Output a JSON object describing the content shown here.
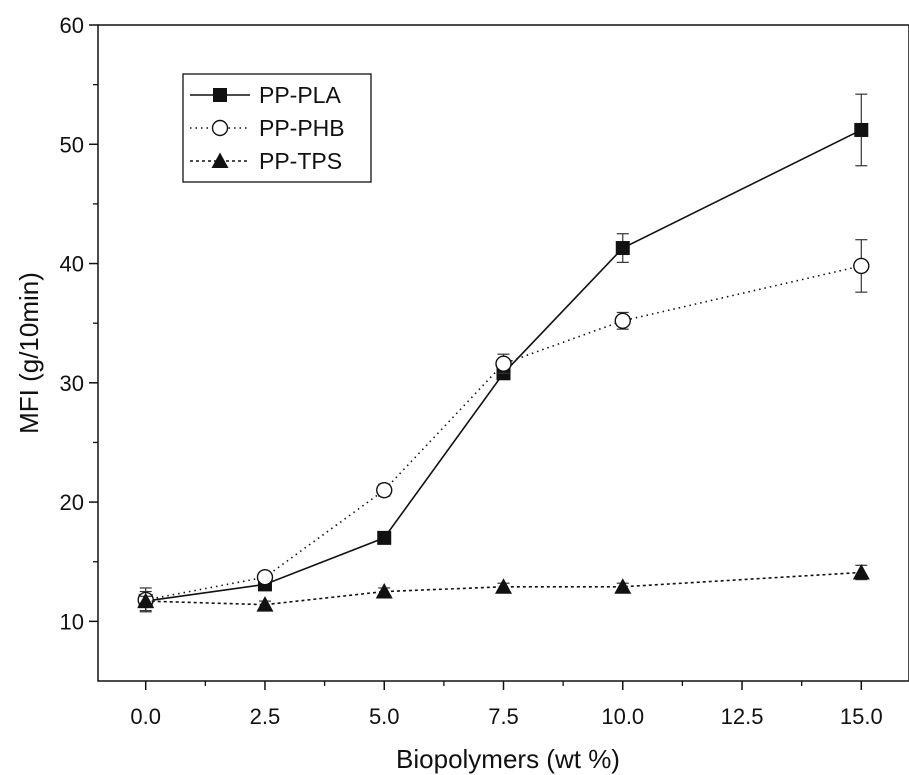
{
  "chart_data": {
    "type": "line",
    "xlabel": "Biopolymers (wt %)",
    "ylabel": "MFI (g/10min)",
    "xlim": [
      -1,
      16
    ],
    "ylim": [
      5,
      60
    ],
    "x_ticks": [
      "0.0",
      "2.5",
      "5.0",
      "7.5",
      "10.0",
      "12.5",
      "15.0"
    ],
    "y_ticks": [
      "10",
      "20",
      "30",
      "40",
      "50",
      "60"
    ],
    "legend_position": "top-left",
    "series": [
      {
        "name": "PP-PLA",
        "marker": "filled-square",
        "line_style": "solid",
        "x": [
          0.0,
          2.5,
          5.0,
          7.5,
          10.0,
          15.0
        ],
        "values": [
          11.7,
          13.1,
          17.0,
          30.8,
          41.3,
          51.2
        ],
        "errors": [
          0.8,
          0.3,
          0.3,
          0.5,
          1.2,
          3.0
        ]
      },
      {
        "name": "PP-PHB",
        "marker": "open-circle",
        "line_style": "dotted",
        "x": [
          0.0,
          2.5,
          5.0,
          7.5,
          10.0,
          15.0
        ],
        "values": [
          11.8,
          13.7,
          21.0,
          31.6,
          35.2,
          39.8
        ],
        "errors": [
          1.0,
          0.4,
          0.5,
          0.8,
          0.7,
          2.2
        ]
      },
      {
        "name": "PP-TPS",
        "marker": "filled-triangle",
        "line_style": "dashed-dotted",
        "x": [
          0.0,
          2.5,
          5.0,
          7.5,
          10.0,
          15.0
        ],
        "values": [
          11.7,
          11.4,
          12.5,
          12.9,
          12.9,
          14.1
        ],
        "errors": [
          0.4,
          0.3,
          0.3,
          0.3,
          0.3,
          0.6
        ]
      }
    ]
  }
}
